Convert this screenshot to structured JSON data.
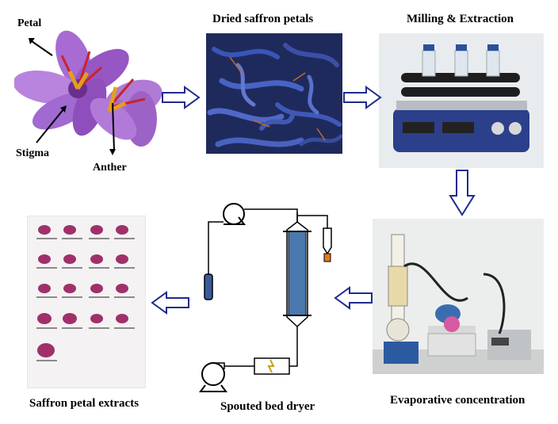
{
  "flower": {
    "petal_label": "Petal",
    "stigma_label": "Stigma",
    "anther_label": "Anther"
  },
  "steps": {
    "dried_petals": "Dried saffron petals",
    "milling": "Milling & Extraction",
    "evaporative": "Evaporative concentration",
    "spouted_bed": "Spouted bed dryer",
    "extracts": "Saffron petal extracts"
  },
  "colors": {
    "arrow_outline": "#1f2b8f",
    "petal_purple": "#9a5fc9",
    "dried_blue": "#2c3f8a",
    "column_blue": "#4a79b0",
    "extract_magenta": "#a0306a"
  }
}
